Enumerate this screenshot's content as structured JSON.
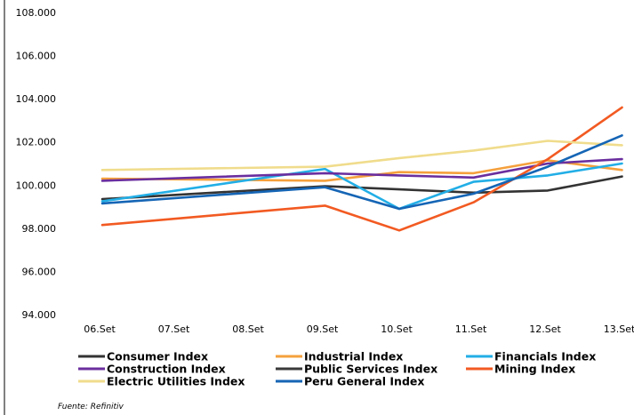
{
  "chart_data": {
    "type": "line",
    "categories": [
      "06.Set",
      "07.Set",
      "08.Set",
      "09.Set",
      "10.Set",
      "11.Set",
      "12.Set",
      "13.Set"
    ],
    "ylim": [
      94,
      108
    ],
    "y_ticks": [
      "94.000",
      "96.000",
      "98.000",
      "100.000",
      "102.000",
      "104.000",
      "106.000",
      "108.000"
    ],
    "grid": false,
    "legend_position": "bottom",
    "source": "Fuente: Refinitiv",
    "series": [
      {
        "name": "Consumer Index",
        "color": "#333333",
        "values": [
          99.35,
          null,
          null,
          99.95,
          99.8,
          99.65,
          99.75,
          100.4
        ]
      },
      {
        "name": "Industrial Index",
        "color": "#F5A03C",
        "values": [
          100.3,
          null,
          null,
          100.2,
          100.6,
          100.55,
          101.15,
          100.7
        ]
      },
      {
        "name": "Financials Index",
        "color": "#22AEE6",
        "values": [
          99.25,
          null,
          null,
          100.75,
          98.9,
          100.15,
          100.45,
          101.0
        ]
      },
      {
        "name": "Construction Index",
        "color": "#6A2E9E",
        "values": [
          100.2,
          null,
          null,
          100.55,
          100.45,
          100.35,
          101.0,
          101.2
        ]
      },
      {
        "name": "Public Services Index",
        "color": "#3A3A3A",
        "values": [
          null,
          null,
          null,
          null,
          null,
          null,
          null,
          null
        ]
      },
      {
        "name": "Mining Index",
        "color": "#F25A22",
        "values": [
          98.15,
          null,
          null,
          99.05,
          97.9,
          99.2,
          101.2,
          103.6
        ]
      },
      {
        "name": "Electric Utilities Index",
        "color": "#F0DC8C",
        "values": [
          100.7,
          null,
          null,
          100.85,
          101.25,
          101.6,
          102.05,
          101.85
        ]
      },
      {
        "name": "Peru General Index",
        "color": "#1565B5",
        "values": [
          99.15,
          null,
          null,
          99.9,
          98.9,
          99.6,
          100.85,
          102.3
        ]
      }
    ]
  }
}
